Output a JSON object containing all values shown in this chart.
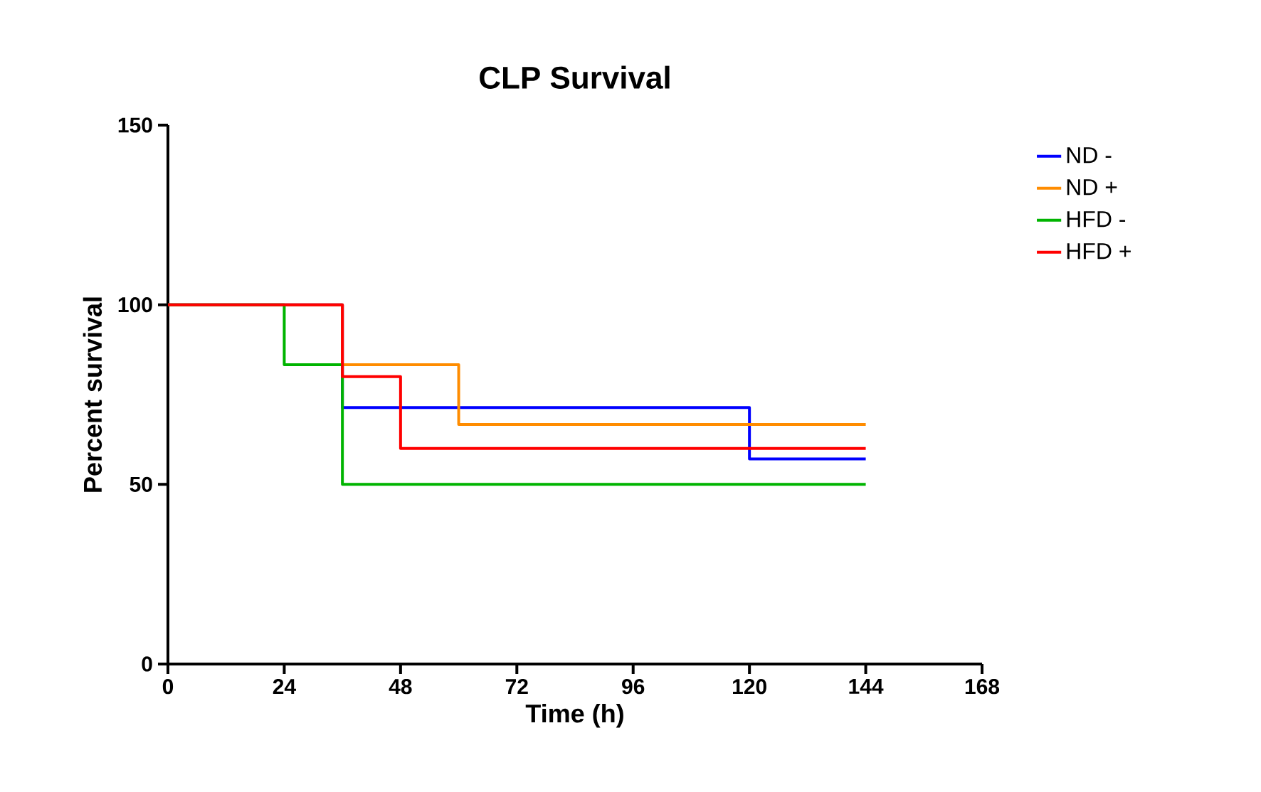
{
  "chart_data": {
    "type": "step",
    "title": "CLP Survival",
    "xlabel": "Time (h)",
    "ylabel": "Percent survival",
    "xlim": [
      0,
      168
    ],
    "ylim": [
      0,
      150
    ],
    "xticks": [
      0,
      24,
      48,
      72,
      96,
      120,
      144,
      168
    ],
    "yticks": [
      0,
      50,
      100,
      150
    ],
    "legend": "top right",
    "series": [
      {
        "name": "ND -",
        "color": "#0000ff",
        "x": [
          0,
          36,
          120,
          144
        ],
        "values": [
          100,
          71.4,
          57.1,
          57.1
        ]
      },
      {
        "name": "ND +",
        "color": "#ff8c00",
        "x": [
          0,
          36,
          60,
          144
        ],
        "values": [
          100,
          83.3,
          66.7,
          66.7
        ]
      },
      {
        "name": "HFD -",
        "color": "#00b400",
        "x": [
          0,
          24,
          36,
          144
        ],
        "values": [
          100,
          83.3,
          50,
          50
        ]
      },
      {
        "name": "HFD +",
        "color": "#ff0000",
        "x": [
          0,
          36,
          48,
          144
        ],
        "values": [
          100,
          80,
          60,
          60
        ]
      }
    ]
  }
}
